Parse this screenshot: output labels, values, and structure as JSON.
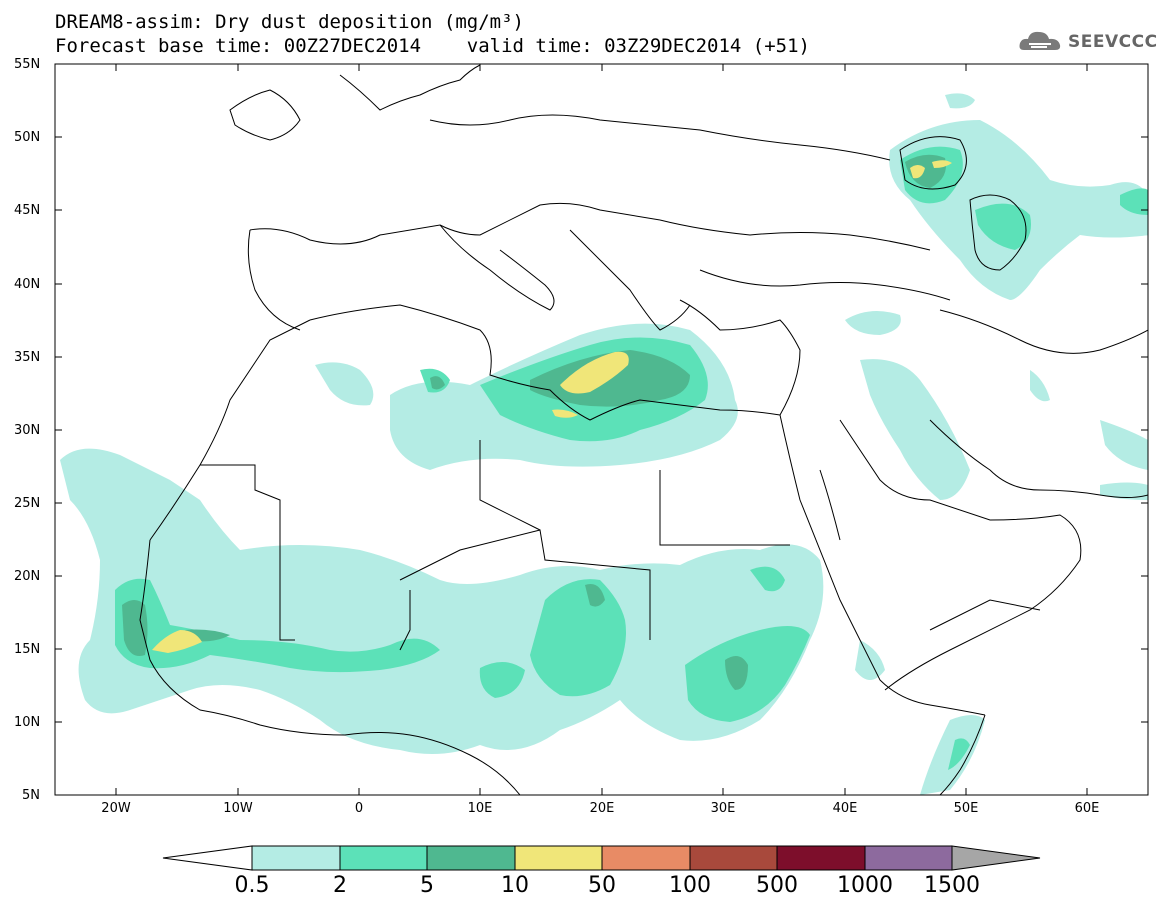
{
  "header": {
    "title_line1": "DREAM8-assim: Dry dust deposition (mg/m³)",
    "title_line2": "Forecast base time: 00Z27DEC2014    valid time: 03Z29DEC2014 (+51)",
    "logo_text": "SEEVCCC"
  },
  "map": {
    "lat_labels": [
      "55N",
      "50N",
      "45N",
      "40N",
      "35N",
      "30N",
      "25N",
      "20N",
      "15N",
      "10N",
      "5N"
    ],
    "lon_labels": [
      "20W",
      "10W",
      "0",
      "10E",
      "20E",
      "30E",
      "40E",
      "50E",
      "60E"
    ],
    "lat_range": [
      5,
      55
    ],
    "lon_range": [
      -25,
      65
    ]
  },
  "colorbar": {
    "labels": [
      "0.5",
      "2",
      "5",
      "10",
      "50",
      "100",
      "500",
      "1000",
      "1500"
    ],
    "colors": [
      "#b4ece4",
      "#5ce1b8",
      "#4fb890",
      "#f0e679",
      "#e88b65",
      "#a8493c",
      "#7d0e2b",
      "#8d6a9e"
    ],
    "under_color": "#ffffff",
    "over_color": "#a6a6a6"
  }
}
